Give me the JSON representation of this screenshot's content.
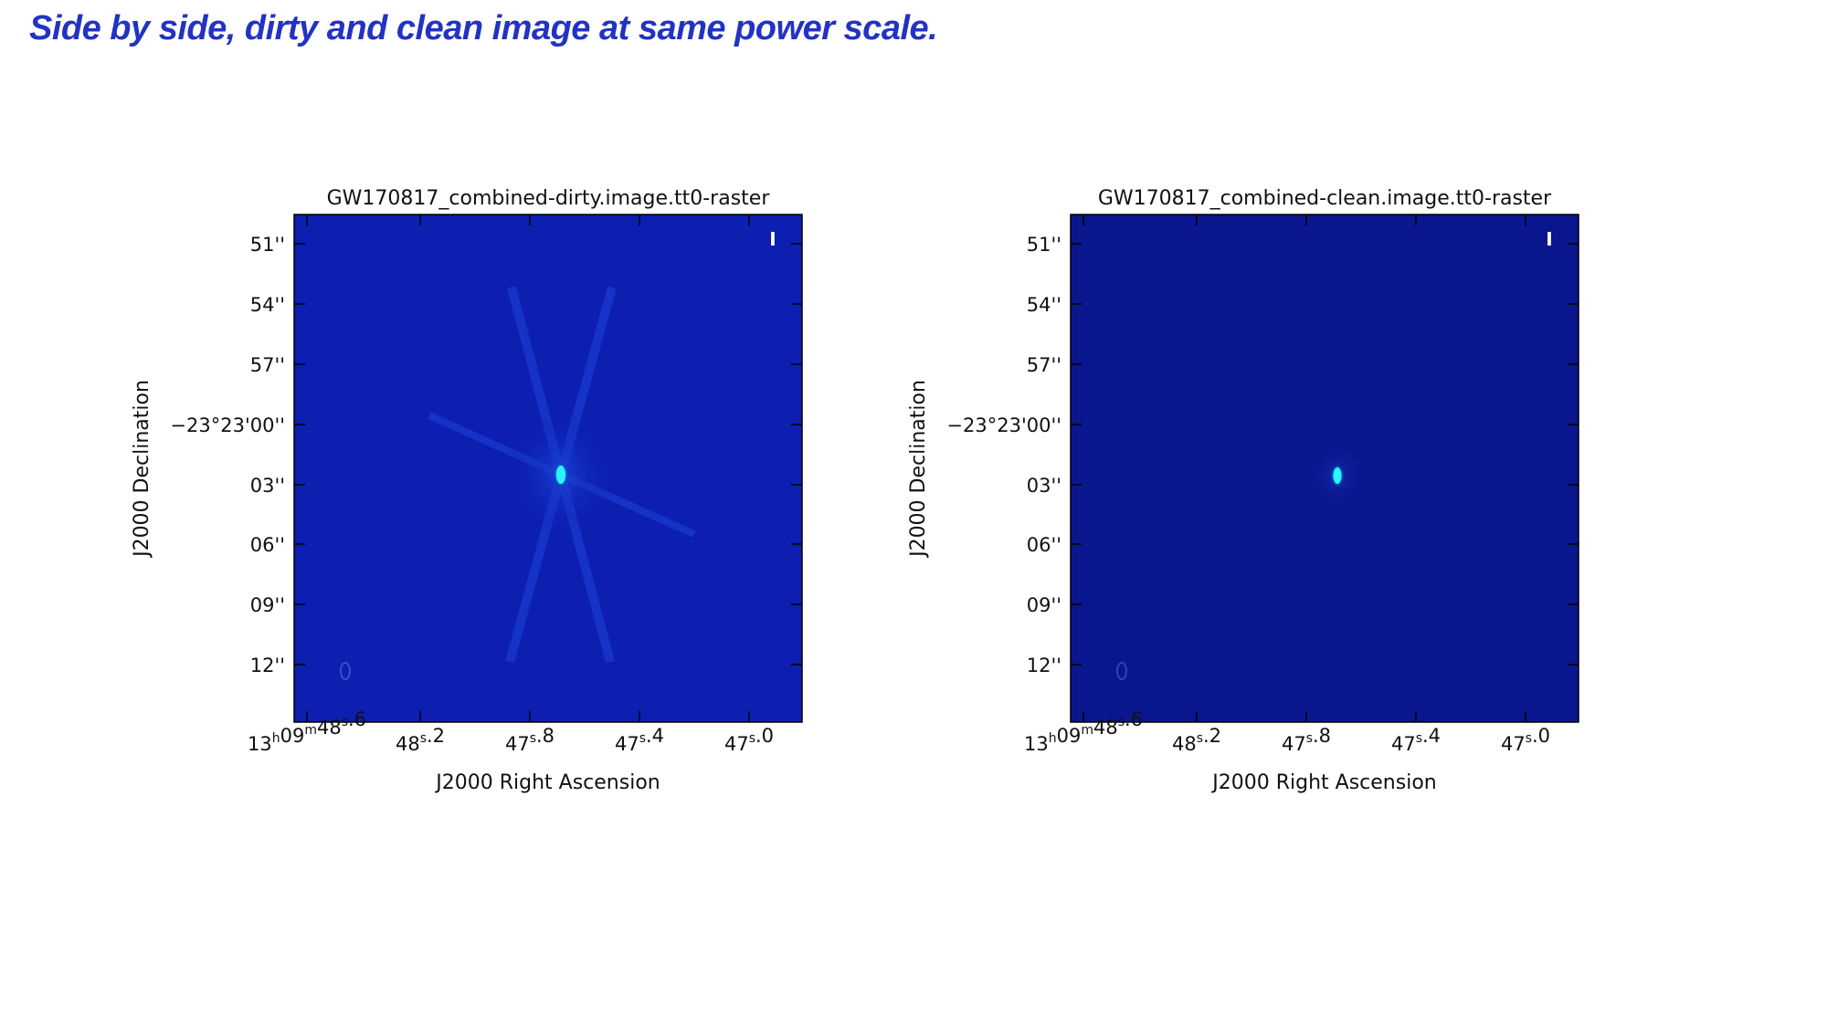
{
  "slide": {
    "title": "Side by side, dirty and clean image at same power scale."
  },
  "panels": [
    {
      "title": "GW170817_combined-dirty.image.tt0-raster",
      "stokes": "I",
      "background": "#0c1fb1",
      "y_ticks": [
        "51''",
        "54''",
        "57''",
        "−23°23'00''",
        "03''",
        "06''",
        "09''",
        "12''"
      ],
      "x_ticks": [
        {
          "main": "13",
          "sup1": "h",
          "mid": "09",
          "sup2": "m",
          "rest": "48",
          "sup3": "s",
          "tail": ".6"
        },
        {
          "main": "48",
          "sup3": "s",
          "tail": ".2"
        },
        {
          "main": "47",
          "sup3": "s",
          "tail": ".8"
        },
        {
          "main": "47",
          "sup3": "s",
          "tail": ".4"
        },
        {
          "main": "47",
          "sup3": "s",
          "tail": ".0"
        }
      ],
      "xlabel": "J2000 Right Ascension",
      "ylabel": "J2000 Declination"
    },
    {
      "title": "GW170817_combined-clean.image.tt0-raster",
      "stokes": "I",
      "background": "#0a168e",
      "y_ticks": [
        "51''",
        "54''",
        "57''",
        "−23°23'00''",
        "03''",
        "06''",
        "09''",
        "12''"
      ],
      "x_ticks": [
        {
          "main": "13",
          "sup1": "h",
          "mid": "09",
          "sup2": "m",
          "rest": "48",
          "sup3": "s",
          "tail": ".6"
        },
        {
          "main": "48",
          "sup3": "s",
          "tail": ".2"
        },
        {
          "main": "47",
          "sup3": "s",
          "tail": ".8"
        },
        {
          "main": "47",
          "sup3": "s",
          "tail": ".4"
        },
        {
          "main": "47",
          "sup3": "s",
          "tail": ".0"
        }
      ],
      "xlabel": "J2000 Right Ascension",
      "ylabel": "J2000 Declination"
    }
  ]
}
